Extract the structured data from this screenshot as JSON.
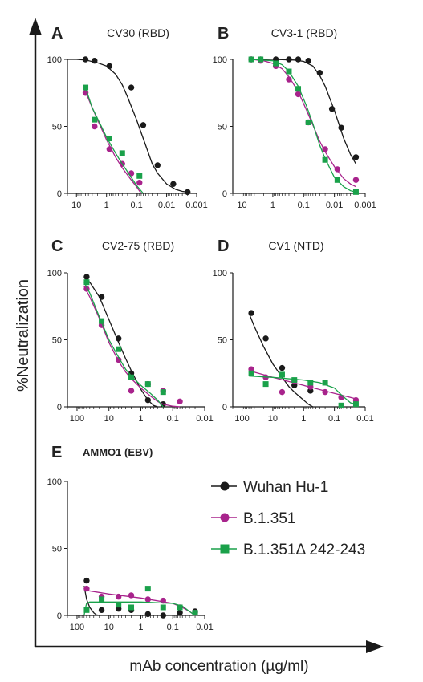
{
  "figure": {
    "ylabel": "%Neutralization",
    "xlabel": "mAb concentration (µg/ml)",
    "axis_color": "#1a1a1a"
  },
  "legend": [
    {
      "label": "Wuhan Hu-1",
      "color": "#1a1a1a",
      "marker": "circle"
    },
    {
      "label": "B.1.351",
      "color": "#a8238c",
      "marker": "circle"
    },
    {
      "label": "B.1.351Δ 242-243",
      "color": "#1aa14a",
      "marker": "square"
    }
  ],
  "chart_data": [
    {
      "panel": "A",
      "type": "scatter",
      "title": "CV30 (RBD)",
      "bold_title": false,
      "x_scale": "log-reversed",
      "xlim": [
        20,
        0.001
      ],
      "ylim": [
        0,
        100
      ],
      "xticks": [
        10,
        1,
        0.1,
        0.01,
        0.001
      ],
      "xticklabels": [
        "10",
        "1",
        "0.1",
        "0.01",
        "0.001"
      ],
      "yticks": [
        0,
        50,
        100
      ],
      "series": [
        {
          "name": "Wuhan Hu-1",
          "x": [
            5,
            2.5,
            0.8,
            0.15,
            0.06,
            0.02,
            0.006,
            0.002
          ],
          "y": [
            100,
            99,
            95,
            79,
            51,
            21,
            7,
            1
          ],
          "fit_x": [
            20,
            10,
            5,
            2,
            1,
            0.5,
            0.3,
            0.2,
            0.1,
            0.05,
            0.03,
            0.02,
            0.01,
            0.005,
            0.003,
            0.002
          ],
          "fit_y": [
            100,
            100,
            99.5,
            97.5,
            95,
            89,
            81,
            72,
            55,
            36,
            22,
            15,
            7,
            3,
            1.5,
            1
          ]
        },
        {
          "name": "B.1.351",
          "x": [
            5,
            2.5,
            0.8,
            0.3,
            0.15,
            0.08
          ],
          "y": [
            75,
            50,
            33,
            22,
            15,
            8
          ],
          "fit_x": [
            5,
            3,
            2,
            1,
            0.5,
            0.3,
            0.15,
            0.1,
            0.07
          ],
          "fit_y": [
            76,
            64,
            55,
            40,
            27,
            19,
            10,
            5,
            0
          ]
        },
        {
          "name": "B.1.351Δ 242-243",
          "x": [
            5,
            2.5,
            0.8,
            0.3,
            0.08
          ],
          "y": [
            79,
            55,
            41,
            30,
            13
          ],
          "fit_x": [
            5,
            3,
            2,
            1,
            0.5,
            0.3,
            0.15,
            0.1,
            0.06
          ],
          "fit_y": [
            79,
            64,
            56,
            42,
            30,
            22,
            12,
            6,
            0
          ]
        }
      ]
    },
    {
      "panel": "B",
      "type": "scatter",
      "title": "CV3-1 (RBD)",
      "bold_title": false,
      "x_scale": "log-reversed",
      "xlim": [
        20,
        0.001
      ],
      "ylim": [
        0,
        100
      ],
      "xticks": [
        10,
        1,
        0.1,
        0.01,
        0.001
      ],
      "xticklabels": [
        "10",
        "1",
        "0.1",
        "0.01",
        "0.001"
      ],
      "yticks": [
        0,
        50,
        100
      ],
      "series": [
        {
          "name": "Wuhan Hu-1",
          "x": [
            5,
            2.5,
            0.8,
            0.3,
            0.15,
            0.07,
            0.03,
            0.012,
            0.006,
            0.002
          ],
          "y": [
            100,
            100,
            100,
            100,
            100,
            99,
            90,
            63,
            49,
            27
          ],
          "fit_x": [
            5,
            1,
            0.2,
            0.1,
            0.05,
            0.03,
            0.02,
            0.01,
            0.005,
            0.003,
            0.002
          ],
          "fit_y": [
            100,
            100,
            99.5,
            98.5,
            95,
            88,
            80,
            62,
            41,
            29,
            22
          ]
        },
        {
          "name": "B.1.351",
          "x": [
            5,
            2.5,
            0.8,
            0.3,
            0.15,
            0.07,
            0.02,
            0.008,
            0.002
          ],
          "y": [
            100,
            99,
            95,
            85,
            74,
            53,
            33,
            18,
            10
          ],
          "fit_x": [
            5,
            2,
            1,
            0.5,
            0.3,
            0.15,
            0.08,
            0.05,
            0.03,
            0.02,
            0.01,
            0.005,
            0.003,
            0.002
          ],
          "fit_y": [
            100,
            99,
            97,
            93,
            87,
            76,
            62,
            51,
            39,
            31,
            20,
            11,
            7,
            5
          ]
        },
        {
          "name": "B.1.351Δ 242-243",
          "x": [
            5,
            2.5,
            0.8,
            0.3,
            0.15,
            0.07,
            0.02,
            0.008,
            0.002
          ],
          "y": [
            100,
            100,
            97,
            91,
            78,
            53,
            25,
            10,
            1
          ],
          "fit_x": [
            5,
            1,
            0.5,
            0.3,
            0.15,
            0.08,
            0.05,
            0.03,
            0.02,
            0.01,
            0.005,
            0.003,
            0.002
          ],
          "fit_y": [
            100,
            99,
            96,
            91,
            80,
            65,
            52,
            36,
            26,
            12,
            5,
            2,
            1
          ]
        }
      ]
    },
    {
      "panel": "C",
      "type": "scatter",
      "title": "CV2-75 (RBD)",
      "bold_title": false,
      "x_scale": "log-reversed",
      "xlim": [
        200,
        0.01
      ],
      "ylim": [
        0,
        100
      ],
      "xticks": [
        100,
        10,
        1,
        0.1,
        0.01
      ],
      "xticklabels": [
        "100",
        "10",
        "1",
        "0.1",
        "0.01"
      ],
      "yticks": [
        0,
        50,
        100
      ],
      "series": [
        {
          "name": "Wuhan Hu-1",
          "x": [
            50,
            17,
            5,
            2,
            0.6,
            0.2
          ],
          "y": [
            97,
            82,
            51,
            25,
            5,
            2
          ],
          "fit_x": [
            60,
            40,
            20,
            10,
            5,
            3,
            2,
            1,
            0.6,
            0.4,
            0.3
          ],
          "fit_y": [
            97,
            93,
            82,
            65,
            48,
            36,
            27,
            13,
            5,
            1,
            0
          ]
        },
        {
          "name": "B.1.351",
          "x": [
            50,
            17,
            5,
            2,
            0.6,
            0.2,
            0.06
          ],
          "y": [
            88,
            61,
            35,
            12,
            17,
            12,
            4
          ],
          "fit_x": [
            60,
            40,
            20,
            10,
            5,
            3,
            2,
            1,
            0.5,
            0.3,
            0.2,
            0.1,
            0.06
          ],
          "fit_y": [
            90,
            82,
            66,
            48,
            34,
            26,
            21,
            14,
            8,
            4,
            2,
            0.5,
            0
          ]
        },
        {
          "name": "B.1.351Δ 242-243",
          "x": [
            50,
            17,
            5,
            2,
            0.6,
            0.2
          ],
          "y": [
            93,
            64,
            43,
            22,
            17,
            11
          ],
          "fit_x": [
            60,
            40,
            20,
            10,
            5,
            3,
            2,
            1,
            0.5,
            0.3,
            0.2
          ],
          "fit_y": [
            93,
            85,
            67,
            50,
            37,
            28,
            23,
            16,
            10,
            5,
            0
          ]
        }
      ]
    },
    {
      "panel": "D",
      "type": "scatter",
      "title": "CV1 (NTD)",
      "bold_title": false,
      "x_scale": "log-reversed",
      "xlim": [
        200,
        0.01
      ],
      "ylim": [
        0,
        100
      ],
      "xticks": [
        100,
        10,
        1,
        0.1,
        0.01
      ],
      "xticklabels": [
        "100",
        "10",
        "1",
        "0.1",
        "0.01"
      ],
      "yticks": [
        0,
        50,
        100
      ],
      "series": [
        {
          "name": "Wuhan Hu-1",
          "x": [
            50,
            17,
            5,
            2,
            0.6
          ],
          "y": [
            70,
            51,
            29,
            16,
            12
          ],
          "fit_x": [
            60,
            40,
            20,
            10,
            5,
            3,
            2,
            1,
            0.7,
            0.5
          ],
          "fit_y": [
            70,
            60,
            45,
            32,
            22,
            15,
            11,
            5,
            2,
            0
          ]
        },
        {
          "name": "B.1.351",
          "x": [
            50,
            17,
            5,
            2,
            0.6,
            0.2,
            0.06,
            0.02
          ],
          "y": [
            28,
            22,
            11,
            19,
            15,
            11,
            7,
            5
          ],
          "fit_x": [
            60,
            10,
            1,
            0.1,
            0.02
          ],
          "fit_y": [
            27,
            22,
            16,
            10,
            6
          ]
        },
        {
          "name": "B.1.351Δ 242-243",
          "x": [
            50,
            17,
            5,
            2,
            0.6,
            0.2,
            0.06,
            0.02
          ],
          "y": [
            25,
            17,
            24,
            20,
            18,
            18,
            1,
            2
          ],
          "fit_x": [
            60,
            10,
            1,
            0.3,
            0.1,
            0.06,
            0.03,
            0.02
          ],
          "fit_y": [
            23,
            22,
            20,
            18,
            14,
            9,
            3,
            2
          ]
        }
      ]
    },
    {
      "panel": "E",
      "type": "scatter",
      "title": "AMMO1 (EBV)",
      "bold_title": true,
      "x_scale": "log-reversed",
      "xlim": [
        200,
        0.01
      ],
      "ylim": [
        0,
        100
      ],
      "xticks": [
        100,
        10,
        1,
        0.1,
        0.01
      ],
      "xticklabels": [
        "100",
        "10",
        "1",
        "0.1",
        "0.01"
      ],
      "yticks": [
        0,
        50,
        100
      ],
      "series": [
        {
          "name": "Wuhan Hu-1",
          "x": [
            50,
            17,
            5,
            2,
            0.6,
            0.2,
            0.06,
            0.02
          ],
          "y": [
            26,
            4,
            5,
            4,
            1,
            0,
            2,
            3
          ],
          "fit_x": [
            60,
            50,
            40,
            30,
            25,
            20
          ],
          "fit_y": [
            22,
            12,
            6,
            2,
            0.5,
            0
          ]
        },
        {
          "name": "B.1.351",
          "x": [
            50,
            17,
            5,
            2,
            0.6,
            0.2,
            0.06,
            0.02
          ],
          "y": [
            20,
            14,
            14,
            15,
            12,
            11,
            6,
            2
          ],
          "fit_x": [
            60,
            10,
            1,
            0.1,
            0.05,
            0.03,
            0.02
          ],
          "fit_y": [
            19,
            16,
            13,
            9,
            6,
            3,
            0
          ]
        },
        {
          "name": "B.1.351Δ 242-243",
          "x": [
            50,
            17,
            5,
            2,
            0.6,
            0.2,
            0.06,
            0.02
          ],
          "y": [
            4,
            12,
            8,
            6,
            20,
            6,
            6,
            2
          ],
          "fit_x": [
            60,
            55,
            50,
            40,
            10,
            1,
            0.1,
            0.05,
            0.03,
            0.02
          ],
          "fit_y": [
            0,
            5,
            9,
            10,
            10,
            10,
            9,
            7,
            3,
            0
          ]
        }
      ]
    }
  ]
}
